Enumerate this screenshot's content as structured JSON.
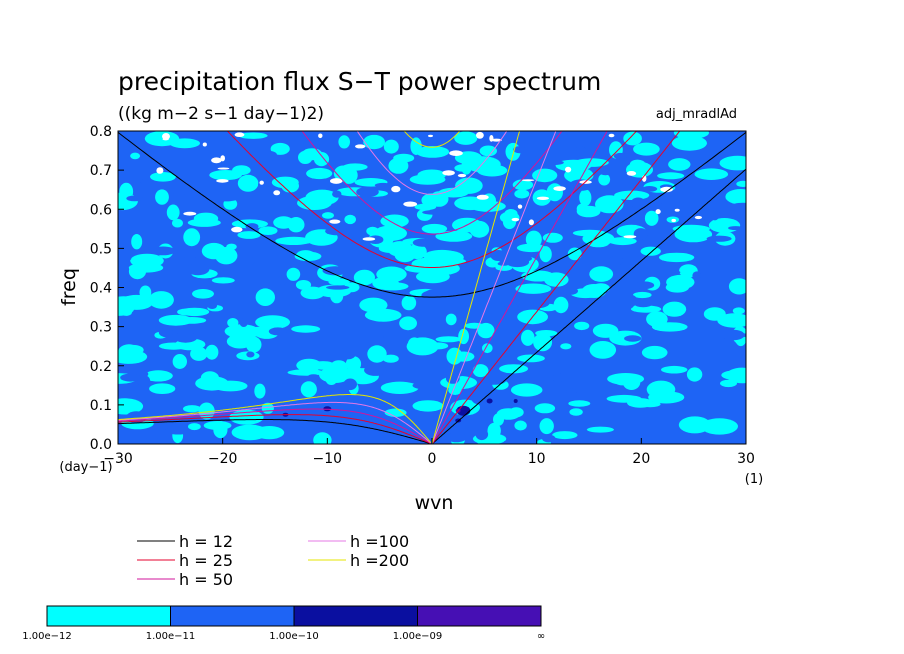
{
  "chart_data": {
    "type": "heatmap",
    "title": "precipitation flux S−T power spectrum",
    "subtitle": "((kg m−2 s−1 day−1)2)",
    "run_label": "adj_mradlAd",
    "xlabel": "wvn",
    "ylabel": "freq",
    "x_unit": "(1)",
    "y_unit": "(day−1)",
    "xlim": [
      -30,
      30
    ],
    "ylim": [
      0,
      0.8
    ],
    "x_ticks": [
      "−30",
      "−20",
      "−10",
      "0",
      "10",
      "20",
      "30"
    ],
    "x_tick_values": [
      -30,
      -20,
      -10,
      0,
      10,
      20,
      30
    ],
    "y_ticks": [
      "0.0",
      "0.1",
      "0.2",
      "0.3",
      "0.4",
      "0.5",
      "0.6",
      "0.7",
      "0.8"
    ],
    "y_tick_values": [
      0,
      0.1,
      0.2,
      0.3,
      0.4,
      0.5,
      0.6,
      0.7,
      0.8
    ],
    "contour_levels": [
      "1.00e−12",
      "1.00e−11",
      "1.00e−10",
      "1.00e−09",
      "∞"
    ],
    "contour_colors": [
      "#00FFFF",
      "#1E64F5",
      "#0A0FA0",
      "#460FB4"
    ],
    "dispersion_curves": [
      {
        "name": "h = 12",
        "h": 12,
        "color": "#000000"
      },
      {
        "name": "h = 25",
        "h": 25,
        "color": "#E6002D"
      },
      {
        "name": "h = 50",
        "h": 50,
        "color": "#D2149B"
      },
      {
        "name": "h =100",
        "h": 100,
        "color": "#E678E6"
      },
      {
        "name": "h =200",
        "h": 200,
        "color": "#E6E600"
      }
    ]
  }
}
